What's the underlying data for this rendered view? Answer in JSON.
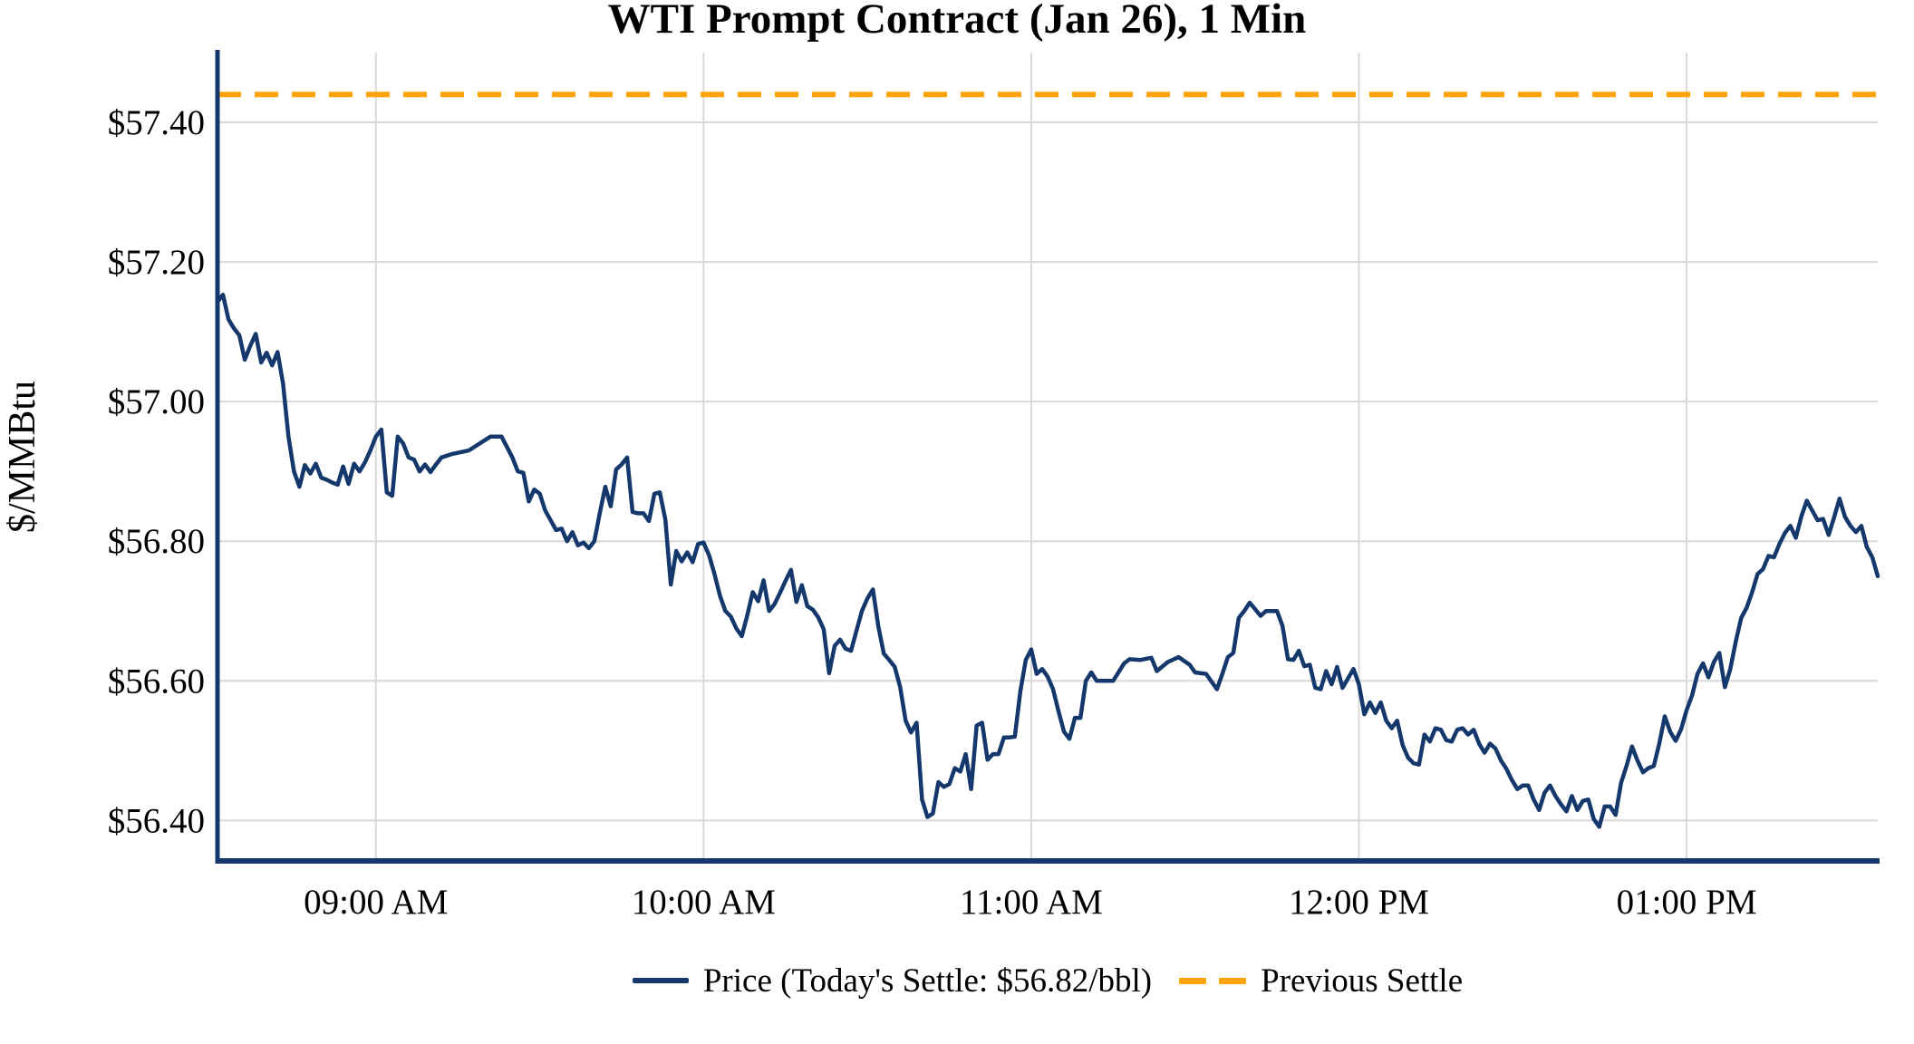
{
  "title": "WTI Prompt Contract (Jan 26), 1 Min",
  "legend": {
    "price_label": "Price (Today's Settle: $56.82/bbl)",
    "previous_settle_label": "Previous Settle"
  },
  "chart_data": {
    "type": "line",
    "title": "WTI Prompt Contract (Jan 26), 1 Min",
    "xlabel": "",
    "ylabel": "$/MMBtu",
    "x_unit": "minutes since 08:31 AM",
    "xlim": [
      0,
      304
    ],
    "ylim": [
      56.342,
      57.5
    ],
    "grid": true,
    "legend_position": "bottom-center",
    "previous_settle": 57.44,
    "todays_settle": 56.82,
    "yticks": [
      {
        "value": 56.4,
        "label": "$56.40"
      },
      {
        "value": 56.6,
        "label": "$56.60"
      },
      {
        "value": 56.8,
        "label": "$56.80"
      },
      {
        "value": 57.0,
        "label": "$57.00"
      },
      {
        "value": 57.2,
        "label": "$57.20"
      },
      {
        "value": 57.4,
        "label": "$57.40"
      }
    ],
    "xticks": [
      {
        "t": 29,
        "label": "09:00 AM"
      },
      {
        "t": 89,
        "label": "10:00 AM"
      },
      {
        "t": 149,
        "label": "11:00 AM"
      },
      {
        "t": 209,
        "label": "12:00 PM"
      },
      {
        "t": 269,
        "label": "01:00 PM"
      }
    ],
    "colors": {
      "price": "#14386b",
      "previous_settle": "#ffa408",
      "grid": "#d8d8d8",
      "text": "#000000",
      "background": "#ffffff"
    },
    "series": [
      {
        "name": "Price",
        "points": [
          [
            0,
            57.143
          ],
          [
            1,
            57.153
          ],
          [
            2,
            57.118
          ],
          [
            3,
            57.105
          ],
          [
            4,
            57.095
          ],
          [
            5,
            57.06
          ],
          [
            6,
            57.08
          ],
          [
            7,
            57.097
          ],
          [
            8,
            57.056
          ],
          [
            9,
            57.07
          ],
          [
            10,
            57.052
          ],
          [
            11,
            57.071
          ],
          [
            12,
            57.026
          ],
          [
            13,
            56.95
          ],
          [
            14,
            56.9
          ],
          [
            15,
            56.878
          ],
          [
            16,
            56.909
          ],
          [
            17,
            56.897
          ],
          [
            18,
            56.911
          ],
          [
            19,
            56.891
          ],
          [
            20,
            56.888
          ],
          [
            21,
            56.884
          ],
          [
            22,
            56.881
          ],
          [
            23,
            56.907
          ],
          [
            24,
            56.882
          ],
          [
            25,
            56.911
          ],
          [
            26,
            56.9
          ],
          [
            27,
            56.913
          ],
          [
            28,
            56.93
          ],
          [
            29,
            56.95
          ],
          [
            30,
            56.96
          ],
          [
            31,
            56.87
          ],
          [
            32,
            56.865
          ],
          [
            33,
            56.95
          ],
          [
            34,
            56.94
          ],
          [
            35,
            56.92
          ],
          [
            36,
            56.917
          ],
          [
            37,
            56.9
          ],
          [
            38,
            56.91
          ],
          [
            39,
            56.899
          ],
          [
            40,
            56.91
          ],
          [
            41,
            56.92
          ],
          [
            43,
            56.925
          ],
          [
            46,
            56.93
          ],
          [
            48,
            56.94
          ],
          [
            50,
            56.95
          ],
          [
            52,
            56.95
          ],
          [
            54,
            56.92
          ],
          [
            55,
            56.9
          ],
          [
            56,
            56.898
          ],
          [
            57,
            56.857
          ],
          [
            58,
            56.874
          ],
          [
            59,
            56.868
          ],
          [
            60,
            56.844
          ],
          [
            62,
            56.816
          ],
          [
            63,
            56.818
          ],
          [
            64,
            56.8
          ],
          [
            65,
            56.813
          ],
          [
            66,
            56.794
          ],
          [
            67,
            56.798
          ],
          [
            68,
            56.79
          ],
          [
            69,
            56.8
          ],
          [
            70,
            56.84
          ],
          [
            71,
            56.878
          ],
          [
            72,
            56.85
          ],
          [
            73,
            56.903
          ],
          [
            74,
            56.91
          ],
          [
            75,
            56.92
          ],
          [
            76,
            56.842
          ],
          [
            77,
            56.84
          ],
          [
            78,
            56.84
          ],
          [
            79,
            56.829
          ],
          [
            80,
            56.868
          ],
          [
            81,
            56.87
          ],
          [
            82,
            56.831
          ],
          [
            83,
            56.738
          ],
          [
            84,
            56.786
          ],
          [
            85,
            56.771
          ],
          [
            86,
            56.784
          ],
          [
            87,
            56.77
          ],
          [
            88,
            56.796
          ],
          [
            89,
            56.798
          ],
          [
            90,
            56.78
          ],
          [
            91,
            56.753
          ],
          [
            92,
            56.722
          ],
          [
            93,
            56.7
          ],
          [
            94,
            56.692
          ],
          [
            95,
            56.675
          ],
          [
            96,
            56.664
          ],
          [
            97,
            56.694
          ],
          [
            98,
            56.727
          ],
          [
            99,
            56.714
          ],
          [
            100,
            56.744
          ],
          [
            101,
            56.7
          ],
          [
            102,
            56.71
          ],
          [
            103,
            56.726
          ],
          [
            104,
            56.743
          ],
          [
            105,
            56.759
          ],
          [
            106,
            56.713
          ],
          [
            107,
            56.737
          ],
          [
            108,
            56.707
          ],
          [
            109,
            56.702
          ],
          [
            110,
            56.691
          ],
          [
            111,
            56.674
          ],
          [
            112,
            56.611
          ],
          [
            113,
            56.65
          ],
          [
            114,
            56.659
          ],
          [
            115,
            56.646
          ],
          [
            116,
            56.643
          ],
          [
            117,
            56.672
          ],
          [
            118,
            56.7
          ],
          [
            119,
            56.718
          ],
          [
            120,
            56.731
          ],
          [
            121,
            56.678
          ],
          [
            122,
            56.639
          ],
          [
            123,
            56.63
          ],
          [
            124,
            56.62
          ],
          [
            125,
            56.591
          ],
          [
            126,
            56.543
          ],
          [
            127,
            56.526
          ],
          [
            128,
            56.54
          ],
          [
            129,
            56.43
          ],
          [
            130,
            56.405
          ],
          [
            131,
            56.41
          ],
          [
            132,
            56.455
          ],
          [
            133,
            56.448
          ],
          [
            134,
            56.452
          ],
          [
            135,
            56.475
          ],
          [
            136,
            56.47
          ],
          [
            137,
            56.495
          ],
          [
            138,
            56.445
          ],
          [
            139,
            56.536
          ],
          [
            140,
            56.54
          ],
          [
            141,
            56.487
          ],
          [
            142,
            56.495
          ],
          [
            143,
            56.495
          ],
          [
            144,
            56.519
          ],
          [
            145,
            56.519
          ],
          [
            146,
            56.52
          ],
          [
            147,
            56.585
          ],
          [
            148,
            56.63
          ],
          [
            149,
            56.645
          ],
          [
            150,
            56.61
          ],
          [
            151,
            56.617
          ],
          [
            152,
            56.606
          ],
          [
            153,
            56.588
          ],
          [
            154,
            56.556
          ],
          [
            155,
            56.527
          ],
          [
            156,
            56.517
          ],
          [
            157,
            56.547
          ],
          [
            158,
            56.547
          ],
          [
            159,
            56.6
          ],
          [
            160,
            56.612
          ],
          [
            161,
            56.6
          ],
          [
            162,
            56.6
          ],
          [
            164,
            56.6
          ],
          [
            166,
            56.625
          ],
          [
            167,
            56.631
          ],
          [
            169,
            56.63
          ],
          [
            171,
            56.633
          ],
          [
            172,
            56.614
          ],
          [
            174,
            56.627
          ],
          [
            176,
            56.634
          ],
          [
            178,
            56.623
          ],
          [
            179,
            56.612
          ],
          [
            181,
            56.61
          ],
          [
            183,
            56.588
          ],
          [
            184,
            56.61
          ],
          [
            185,
            56.634
          ],
          [
            186,
            56.64
          ],
          [
            187,
            56.69
          ],
          [
            188,
            56.7
          ],
          [
            189,
            56.712
          ],
          [
            191,
            56.693
          ],
          [
            192,
            56.7
          ],
          [
            194,
            56.7
          ],
          [
            195,
            56.679
          ],
          [
            196,
            56.631
          ],
          [
            197,
            56.63
          ],
          [
            198,
            56.643
          ],
          [
            199,
            56.621
          ],
          [
            200,
            56.623
          ],
          [
            201,
            56.59
          ],
          [
            202,
            56.588
          ],
          [
            203,
            56.614
          ],
          [
            204,
            56.595
          ],
          [
            205,
            56.62
          ],
          [
            206,
            56.59
          ],
          [
            208,
            56.617
          ],
          [
            209,
            56.595
          ],
          [
            210,
            56.552
          ],
          [
            211,
            56.569
          ],
          [
            212,
            56.554
          ],
          [
            213,
            56.569
          ],
          [
            214,
            56.543
          ],
          [
            215,
            56.532
          ],
          [
            216,
            56.543
          ],
          [
            217,
            56.508
          ],
          [
            218,
            56.49
          ],
          [
            219,
            56.482
          ],
          [
            220,
            56.48
          ],
          [
            221,
            56.523
          ],
          [
            222,
            56.513
          ],
          [
            223,
            56.532
          ],
          [
            224,
            56.53
          ],
          [
            225,
            56.515
          ],
          [
            226,
            56.513
          ],
          [
            227,
            56.53
          ],
          [
            228,
            56.532
          ],
          [
            229,
            56.523
          ],
          [
            230,
            56.53
          ],
          [
            231,
            56.51
          ],
          [
            232,
            56.497
          ],
          [
            233,
            56.51
          ],
          [
            234,
            56.503
          ],
          [
            235,
            56.486
          ],
          [
            236,
            56.474
          ],
          [
            237,
            56.458
          ],
          [
            238,
            56.445
          ],
          [
            239,
            56.45
          ],
          [
            240,
            56.45
          ],
          [
            241,
            56.43
          ],
          [
            242,
            56.415
          ],
          [
            243,
            56.44
          ],
          [
            244,
            56.45
          ],
          [
            245,
            56.435
          ],
          [
            246,
            56.423
          ],
          [
            247,
            56.413
          ],
          [
            248,
            56.435
          ],
          [
            249,
            56.415
          ],
          [
            250,
            56.428
          ],
          [
            251,
            56.43
          ],
          [
            252,
            56.402
          ],
          [
            253,
            56.391
          ],
          [
            254,
            56.42
          ],
          [
            255,
            56.42
          ],
          [
            256,
            56.408
          ],
          [
            257,
            56.454
          ],
          [
            258,
            56.478
          ],
          [
            259,
            56.506
          ],
          [
            260,
            56.486
          ],
          [
            261,
            56.469
          ],
          [
            262,
            56.475
          ],
          [
            263,
            56.478
          ],
          [
            264,
            56.51
          ],
          [
            265,
            56.549
          ],
          [
            266,
            56.527
          ],
          [
            267,
            56.514
          ],
          [
            268,
            56.531
          ],
          [
            269,
            56.558
          ],
          [
            270,
            56.579
          ],
          [
            271,
            56.61
          ],
          [
            272,
            56.625
          ],
          [
            273,
            56.605
          ],
          [
            274,
            56.627
          ],
          [
            275,
            56.64
          ],
          [
            276,
            56.591
          ],
          [
            277,
            56.617
          ],
          [
            278,
            56.656
          ],
          [
            279,
            56.69
          ],
          [
            280,
            56.705
          ],
          [
            281,
            56.727
          ],
          [
            282,
            56.753
          ],
          [
            283,
            56.76
          ],
          [
            284,
            56.779
          ],
          [
            285,
            56.777
          ],
          [
            286,
            56.796
          ],
          [
            287,
            56.812
          ],
          [
            288,
            56.822
          ],
          [
            289,
            56.805
          ],
          [
            290,
            56.835
          ],
          [
            291,
            56.858
          ],
          [
            292,
            56.844
          ],
          [
            293,
            56.83
          ],
          [
            294,
            56.832
          ],
          [
            295,
            56.809
          ],
          [
            296,
            56.834
          ],
          [
            297,
            56.861
          ],
          [
            298,
            56.835
          ],
          [
            299,
            56.822
          ],
          [
            300,
            56.813
          ],
          [
            301,
            56.822
          ],
          [
            302,
            56.792
          ],
          [
            303,
            56.777
          ],
          [
            304,
            56.75
          ]
        ]
      }
    ]
  }
}
